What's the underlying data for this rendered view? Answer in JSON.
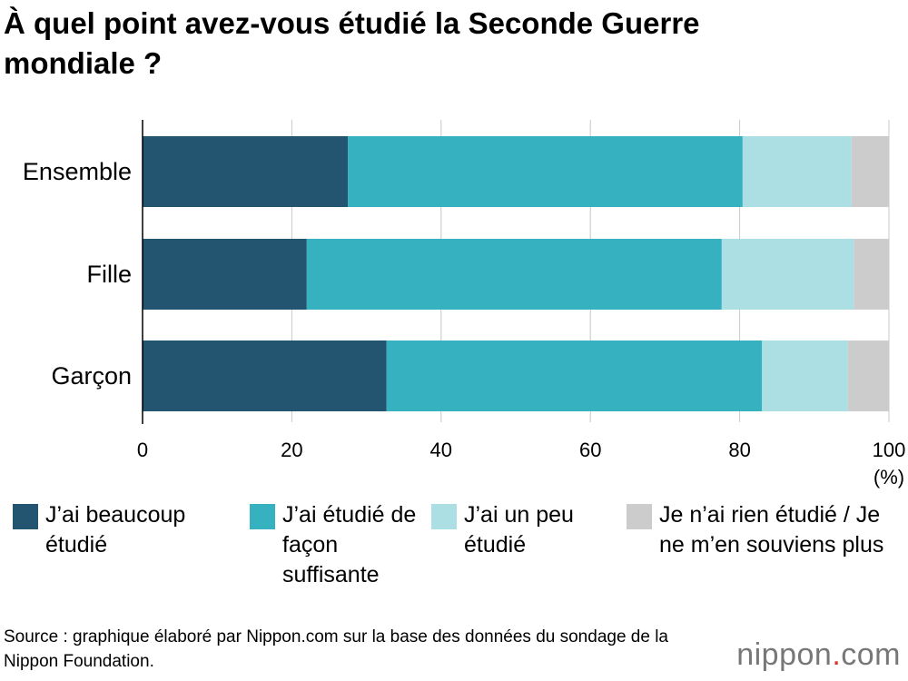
{
  "chart_data": {
    "type": "stacked-barh",
    "title": "À quel point avez-vous étudié la Seconde Guerre mondiale ?",
    "categories": [
      "Ensemble",
      "Fille",
      "Garçon"
    ],
    "series": [
      {
        "name": "J’ai beaucoup étudié",
        "color": "#235470",
        "values": [
          27.5,
          22.0,
          32.7
        ]
      },
      {
        "name": "J’ai étudié de façon suffisante",
        "color": "#35b1bf",
        "values": [
          52.9,
          55.6,
          50.3
        ]
      },
      {
        "name": "J’ai un peu étudié",
        "color": "#acdfe4",
        "values": [
          14.6,
          17.7,
          11.5
        ]
      },
      {
        "name": "Je n’ai rien étudié / Je ne m’en souviens plus",
        "color": "#cccccc",
        "values": [
          5.0,
          4.7,
          5.5
        ]
      }
    ],
    "xlim": [
      0,
      100
    ],
    "xticks": [
      0,
      20,
      40,
      60,
      80,
      100
    ],
    "x_unit": "(%)",
    "grid": true,
    "source": "Source : graphique élaboré par Nippon.com sur la base des données du sondage de la Nippon Foundation.",
    "logo": {
      "name": "nippon",
      "dot": ".",
      "tld": "com"
    }
  }
}
